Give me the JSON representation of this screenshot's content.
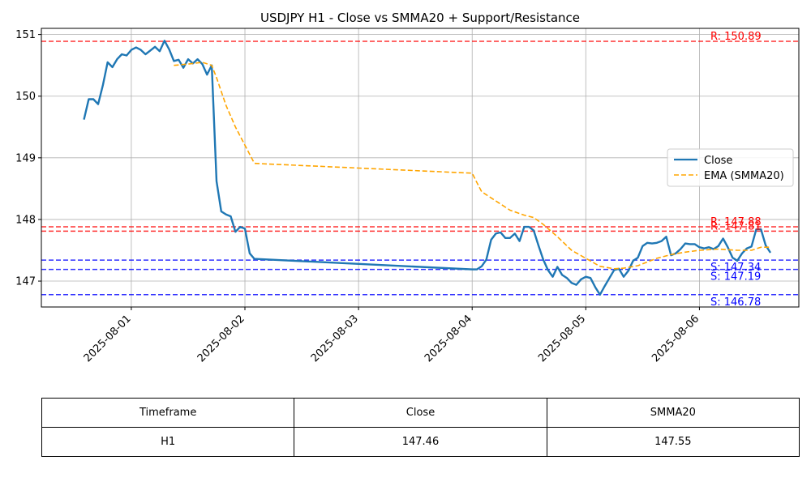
{
  "chart_data": {
    "type": "line",
    "title": "USDJPY H1 - Close vs SMMA20 + Support/Resistance",
    "xlabel": "",
    "ylabel": "",
    "xlim": [
      "2025-07-31 05:00",
      "2025-08-06 21:00"
    ],
    "ylim": [
      146.58,
      151.1
    ],
    "grid": true,
    "legend_position": "center-right",
    "x_ticks": [
      "2025-08-01",
      "2025-08-02",
      "2025-08-03",
      "2025-08-04",
      "2025-08-05",
      "2025-08-06"
    ],
    "y_ticks": [
      147,
      148,
      149,
      150,
      151
    ],
    "series": [
      {
        "name": "Close",
        "color": "#1f77b4",
        "style": "solid",
        "points": [
          [
            "2025-07-31 14:00",
            149.62
          ],
          [
            "2025-07-31 15:00",
            149.95
          ],
          [
            "2025-07-31 16:00",
            149.95
          ],
          [
            "2025-07-31 17:00",
            149.87
          ],
          [
            "2025-07-31 18:00",
            150.18
          ],
          [
            "2025-07-31 19:00",
            150.55
          ],
          [
            "2025-07-31 20:00",
            150.47
          ],
          [
            "2025-07-31 21:00",
            150.6
          ],
          [
            "2025-07-31 22:00",
            150.68
          ],
          [
            "2025-07-31 23:00",
            150.66
          ],
          [
            "2025-08-01 00:00",
            150.75
          ],
          [
            "2025-08-01 01:00",
            150.79
          ],
          [
            "2025-08-01 02:00",
            150.75
          ],
          [
            "2025-08-01 03:00",
            150.68
          ],
          [
            "2025-08-01 04:00",
            150.74
          ],
          [
            "2025-08-01 05:00",
            150.8
          ],
          [
            "2025-08-01 06:00",
            150.73
          ],
          [
            "2025-08-01 07:00",
            150.9
          ],
          [
            "2025-08-01 08:00",
            150.76
          ],
          [
            "2025-08-01 09:00",
            150.57
          ],
          [
            "2025-08-01 10:00",
            150.59
          ],
          [
            "2025-08-01 11:00",
            150.46
          ],
          [
            "2025-08-01 12:00",
            150.6
          ],
          [
            "2025-08-01 13:00",
            150.53
          ],
          [
            "2025-08-01 14:00",
            150.6
          ],
          [
            "2025-08-01 15:00",
            150.52
          ],
          [
            "2025-08-01 16:00",
            150.35
          ],
          [
            "2025-08-01 17:00",
            150.5
          ],
          [
            "2025-08-01 18:00",
            148.62
          ],
          [
            "2025-08-01 19:00",
            148.13
          ],
          [
            "2025-08-01 20:00",
            148.08
          ],
          [
            "2025-08-01 21:00",
            148.05
          ],
          [
            "2025-08-01 22:00",
            147.8
          ],
          [
            "2025-08-01 23:00",
            147.88
          ],
          [
            "2025-08-02 00:00",
            147.85
          ],
          [
            "2025-08-02 01:00",
            147.45
          ],
          [
            "2025-08-02 02:00",
            147.36
          ],
          [
            "2025-08-04 00:00",
            147.19
          ],
          [
            "2025-08-04 01:00",
            147.19
          ],
          [
            "2025-08-04 02:00",
            147.24
          ],
          [
            "2025-08-04 03:00",
            147.35
          ],
          [
            "2025-08-04 04:00",
            147.67
          ],
          [
            "2025-08-04 05:00",
            147.77
          ],
          [
            "2025-08-04 06:00",
            147.79
          ],
          [
            "2025-08-04 07:00",
            147.7
          ],
          [
            "2025-08-04 08:00",
            147.7
          ],
          [
            "2025-08-04 09:00",
            147.77
          ],
          [
            "2025-08-04 10:00",
            147.65
          ],
          [
            "2025-08-04 11:00",
            147.88
          ],
          [
            "2025-08-04 12:00",
            147.88
          ],
          [
            "2025-08-04 13:00",
            147.82
          ],
          [
            "2025-08-04 14:00",
            147.58
          ],
          [
            "2025-08-04 15:00",
            147.35
          ],
          [
            "2025-08-04 16:00",
            147.18
          ],
          [
            "2025-08-04 17:00",
            147.07
          ],
          [
            "2025-08-04 18:00",
            147.23
          ],
          [
            "2025-08-04 19:00",
            147.1
          ],
          [
            "2025-08-04 20:00",
            147.05
          ],
          [
            "2025-08-04 21:00",
            146.97
          ],
          [
            "2025-08-04 22:00",
            146.94
          ],
          [
            "2025-08-04 23:00",
            147.03
          ],
          [
            "2025-08-05 00:00",
            147.07
          ],
          [
            "2025-08-05 01:00",
            147.05
          ],
          [
            "2025-08-05 02:00",
            146.9
          ],
          [
            "2025-08-05 03:00",
            146.78
          ],
          [
            "2025-08-05 04:00",
            146.92
          ],
          [
            "2025-08-05 05:00",
            147.05
          ],
          [
            "2025-08-05 06:00",
            147.18
          ],
          [
            "2025-08-05 07:00",
            147.2
          ],
          [
            "2025-08-05 08:00",
            147.07
          ],
          [
            "2025-08-05 09:00",
            147.17
          ],
          [
            "2025-08-05 10:00",
            147.33
          ],
          [
            "2025-08-05 11:00",
            147.38
          ],
          [
            "2025-08-05 12:00",
            147.57
          ],
          [
            "2025-08-05 13:00",
            147.62
          ],
          [
            "2025-08-05 14:00",
            147.61
          ],
          [
            "2025-08-05 15:00",
            147.62
          ],
          [
            "2025-08-05 16:00",
            147.65
          ],
          [
            "2025-08-05 17:00",
            147.72
          ],
          [
            "2025-08-05 18:00",
            147.42
          ],
          [
            "2025-08-05 19:00",
            147.45
          ],
          [
            "2025-08-05 20:00",
            147.52
          ],
          [
            "2025-08-05 21:00",
            147.61
          ],
          [
            "2025-08-05 22:00",
            147.6
          ],
          [
            "2025-08-05 23:00",
            147.6
          ],
          [
            "2025-08-06 00:00",
            147.55
          ],
          [
            "2025-08-06 01:00",
            147.53
          ],
          [
            "2025-08-06 02:00",
            147.55
          ],
          [
            "2025-08-06 03:00",
            147.52
          ],
          [
            "2025-08-06 04:00",
            147.57
          ],
          [
            "2025-08-06 05:00",
            147.69
          ],
          [
            "2025-08-06 06:00",
            147.55
          ],
          [
            "2025-08-06 07:00",
            147.38
          ],
          [
            "2025-08-06 08:00",
            147.33
          ],
          [
            "2025-08-06 09:00",
            147.45
          ],
          [
            "2025-08-06 10:00",
            147.53
          ],
          [
            "2025-08-06 11:00",
            147.56
          ],
          [
            "2025-08-06 12:00",
            147.84
          ],
          [
            "2025-08-06 13:00",
            147.84
          ],
          [
            "2025-08-06 14:00",
            147.58
          ],
          [
            "2025-08-06 15:00",
            147.46
          ]
        ]
      },
      {
        "name": "EMA (SMMA20)",
        "color": "#ffa500",
        "style": "dashed",
        "points": [
          [
            "2025-08-01 09:00",
            150.5
          ],
          [
            "2025-08-01 12:00",
            150.52
          ],
          [
            "2025-08-01 15:00",
            150.55
          ],
          [
            "2025-08-01 17:00",
            150.5
          ],
          [
            "2025-08-01 18:00",
            150.3
          ],
          [
            "2025-08-01 20:00",
            149.85
          ],
          [
            "2025-08-01 22:00",
            149.5
          ],
          [
            "2025-08-02 02:00",
            148.91
          ],
          [
            "2025-08-04 00:00",
            148.75
          ],
          [
            "2025-08-04 01:00",
            148.6
          ],
          [
            "2025-08-04 02:00",
            148.45
          ],
          [
            "2025-08-04 04:00",
            148.35
          ],
          [
            "2025-08-04 06:00",
            148.25
          ],
          [
            "2025-08-04 08:00",
            148.15
          ],
          [
            "2025-08-04 11:00",
            148.07
          ],
          [
            "2025-08-04 13:00",
            148.03
          ],
          [
            "2025-08-04 15:00",
            147.92
          ],
          [
            "2025-08-04 18:00",
            147.72
          ],
          [
            "2025-08-04 21:00",
            147.5
          ],
          [
            "2025-08-05 00:00",
            147.37
          ],
          [
            "2025-08-05 03:00",
            147.24
          ],
          [
            "2025-08-05 06:00",
            147.2
          ],
          [
            "2025-08-05 08:00",
            147.21
          ],
          [
            "2025-08-05 11:00",
            147.25
          ],
          [
            "2025-08-05 15:00",
            147.37
          ],
          [
            "2025-08-05 18:00",
            147.43
          ],
          [
            "2025-08-05 21:00",
            147.47
          ],
          [
            "2025-08-06 00:00",
            147.5
          ],
          [
            "2025-08-06 04:00",
            147.52
          ],
          [
            "2025-08-06 08:00",
            147.5
          ],
          [
            "2025-08-06 11:00",
            147.5
          ],
          [
            "2025-08-06 13:00",
            147.55
          ],
          [
            "2025-08-06 15:00",
            147.55
          ]
        ]
      }
    ],
    "levels": [
      {
        "kind": "resistance",
        "value": 150.89,
        "label": "R: 150.89",
        "color": "#ff0000"
      },
      {
        "kind": "resistance",
        "value": 147.88,
        "label": "R: 147.88",
        "color": "#ff0000"
      },
      {
        "kind": "resistance",
        "value": 147.81,
        "label": "R: 147.81",
        "color": "#ff0000"
      },
      {
        "kind": "support",
        "value": 147.34,
        "label": "S: 147.34",
        "color": "#0000ff"
      },
      {
        "kind": "support",
        "value": 147.19,
        "label": "S: 147.19",
        "color": "#0000ff"
      },
      {
        "kind": "support",
        "value": 146.78,
        "label": "S: 146.78",
        "color": "#0000ff"
      }
    ]
  },
  "table": {
    "headers": [
      "Timeframe",
      "Close",
      "SMMA20"
    ],
    "row": [
      "H1",
      "147.46",
      "147.55"
    ]
  }
}
